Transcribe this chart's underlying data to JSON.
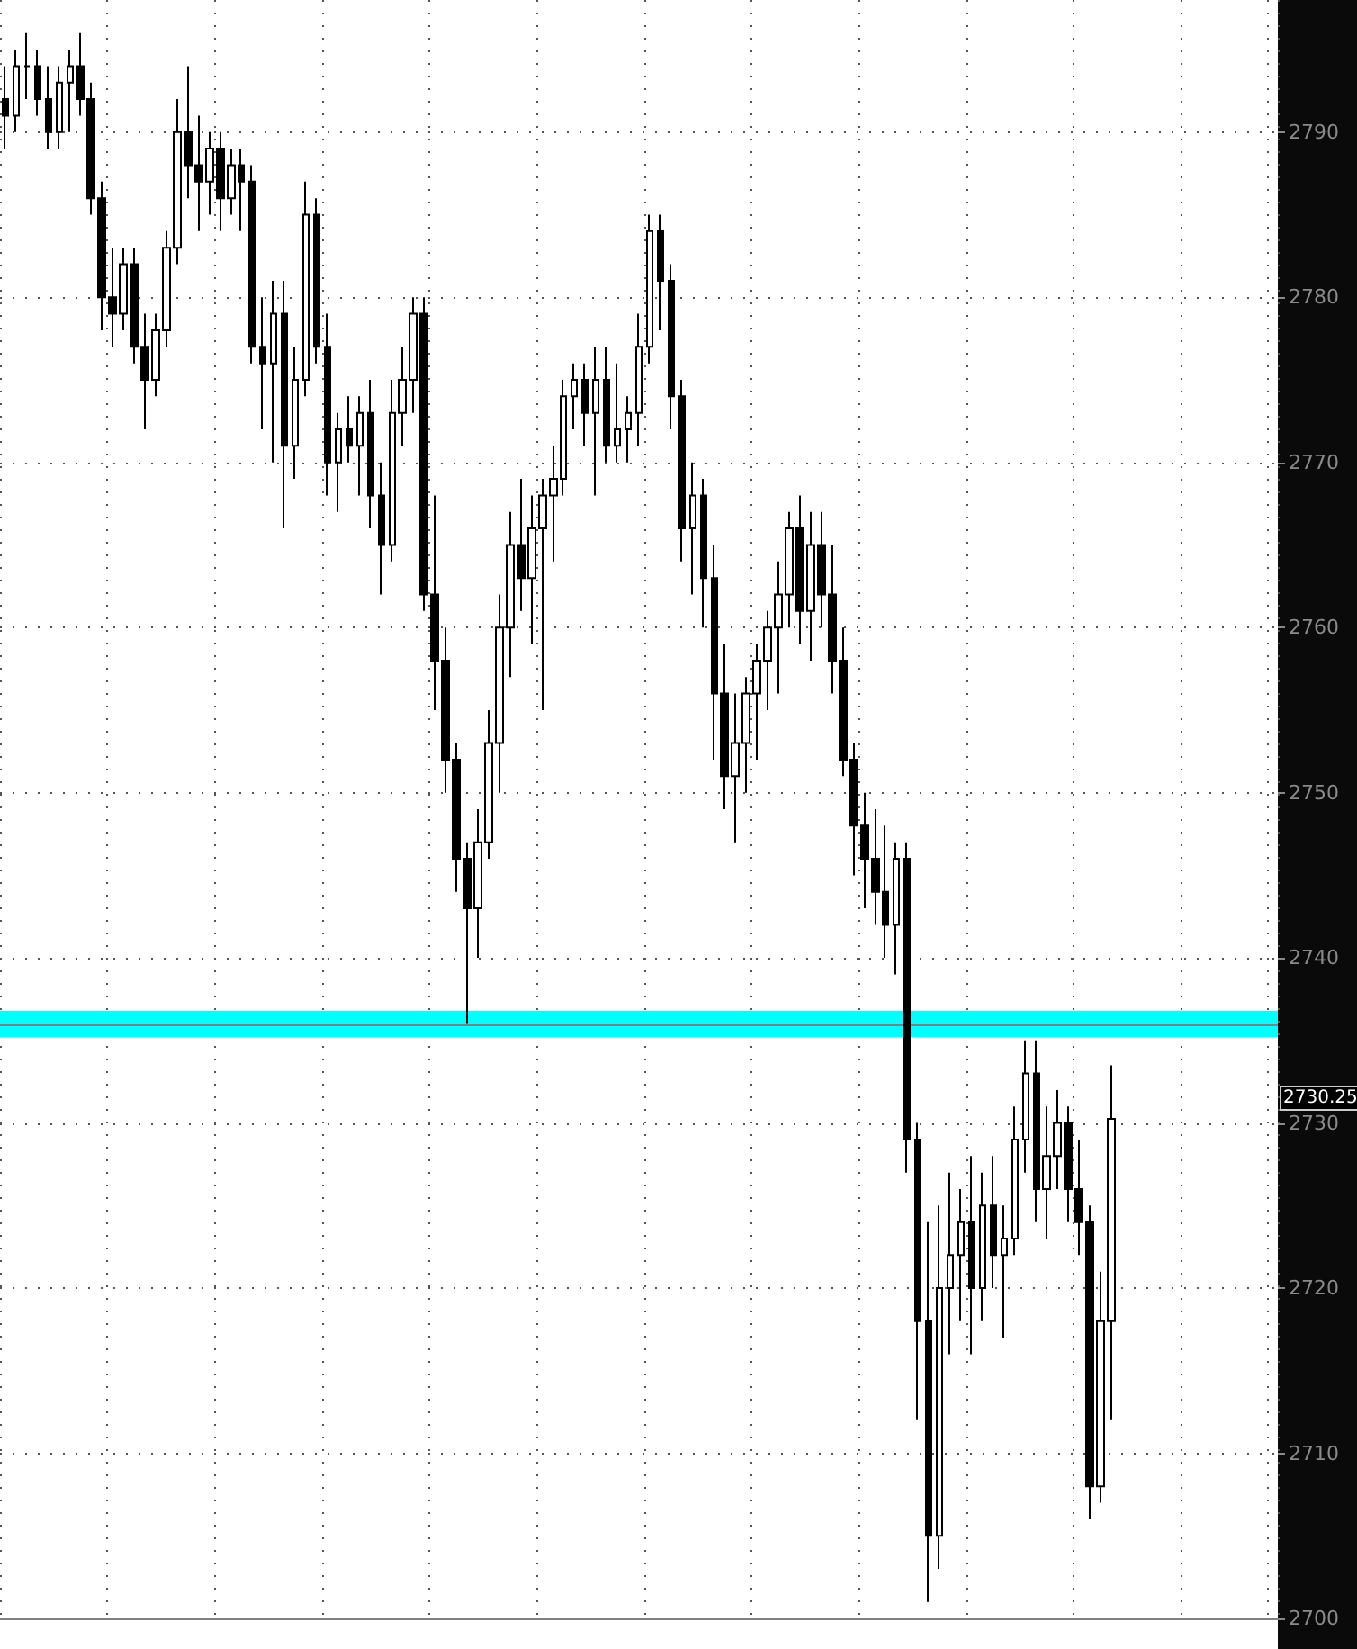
{
  "chart_data": {
    "type": "candlestick",
    "categories": [
      null,
      null,
      null,
      null,
      null,
      null,
      null,
      null,
      null,
      null,
      null,
      null,
      null,
      null,
      null,
      null,
      null,
      null,
      null,
      null,
      null,
      null,
      null,
      null,
      null,
      null,
      null,
      null,
      null,
      null,
      null,
      null,
      null,
      null,
      null,
      null,
      null,
      null,
      null,
      null,
      null,
      null,
      null,
      null,
      null,
      null,
      null,
      null,
      null,
      null,
      null,
      null,
      null,
      null,
      null,
      null,
      null,
      null,
      null,
      null,
      null,
      null,
      null,
      null,
      null,
      null,
      null,
      null,
      null,
      null,
      null,
      null,
      null,
      null,
      null,
      null,
      null,
      null,
      null,
      null,
      null,
      null,
      null,
      null,
      null,
      null,
      null,
      null,
      null,
      null,
      null,
      null,
      null,
      null,
      null,
      null,
      null,
      null,
      null,
      null,
      null,
      null,
      null,
      null,
      null,
      null,
      null,
      null,
      null,
      null,
      null,
      null,
      null,
      null,
      null,
      null,
      null,
      null,
      null
    ],
    "ohlc": [
      [
        2792,
        2794,
        2789,
        2791
      ],
      [
        2791,
        2795,
        2790,
        2794
      ],
      [
        2794,
        2796,
        2792,
        2794
      ],
      [
        2794,
        2795,
        2791,
        2792
      ],
      [
        2792,
        2794,
        2789,
        2790
      ],
      [
        2790,
        2794,
        2789,
        2793
      ],
      [
        2793,
        2795,
        2790,
        2794
      ],
      [
        2794,
        2796,
        2791,
        2792
      ],
      [
        2792,
        2793,
        2785,
        2786
      ],
      [
        2786,
        2787,
        2778,
        2780
      ],
      [
        2780,
        2783,
        2777,
        2779
      ],
      [
        2779,
        2783,
        2778,
        2782
      ],
      [
        2782,
        2783,
        2776,
        2777
      ],
      [
        2777,
        2779,
        2772,
        2775
      ],
      [
        2775,
        2779,
        2774,
        2778
      ],
      [
        2778,
        2784,
        2777,
        2783
      ],
      [
        2783,
        2792,
        2782,
        2790
      ],
      [
        2790,
        2794,
        2786,
        2788
      ],
      [
        2788,
        2791,
        2784,
        2787
      ],
      [
        2787,
        2790,
        2785,
        2789
      ],
      [
        2789,
        2790,
        2784,
        2786
      ],
      [
        2786,
        2789,
        2785,
        2788
      ],
      [
        2788,
        2789,
        2784,
        2787
      ],
      [
        2787,
        2788,
        2776,
        2777
      ],
      [
        2777,
        2780,
        2772,
        2776
      ],
      [
        2776,
        2781,
        2770,
        2779
      ],
      [
        2779,
        2781,
        2766,
        2771
      ],
      [
        2771,
        2777,
        2769,
        2775
      ],
      [
        2775,
        2787,
        2774,
        2785
      ],
      [
        2785,
        2786,
        2776,
        2777
      ],
      [
        2777,
        2779,
        2768,
        2770
      ],
      [
        2770,
        2773,
        2767,
        2772
      ],
      [
        2772,
        2774,
        2770,
        2771
      ],
      [
        2771,
        2774,
        2768,
        2773
      ],
      [
        2773,
        2775,
        2766,
        2768
      ],
      [
        2768,
        2770,
        2762,
        2765
      ],
      [
        2765,
        2775,
        2764,
        2773
      ],
      [
        2773,
        2777,
        2771,
        2775
      ],
      [
        2775,
        2780,
        2773,
        2779
      ],
      [
        2779,
        2780,
        2761,
        2762
      ],
      [
        2762,
        2768,
        2755,
        2758
      ],
      [
        2758,
        2760,
        2750,
        2752
      ],
      [
        2752,
        2753,
        2744,
        2746
      ],
      [
        2746,
        2747,
        2736,
        2743
      ],
      [
        2743,
        2749,
        2740,
        2747
      ],
      [
        2747,
        2755,
        2746,
        2753
      ],
      [
        2753,
        2762,
        2750,
        2760
      ],
      [
        2760,
        2767,
        2757,
        2765
      ],
      [
        2765,
        2769,
        2761,
        2763
      ],
      [
        2763,
        2768,
        2759,
        2766
      ],
      [
        2766,
        2769,
        2755,
        2768
      ],
      [
        2768,
        2771,
        2764,
        2769
      ],
      [
        2769,
        2775,
        2768,
        2774
      ],
      [
        2774,
        2776,
        2772,
        2775
      ],
      [
        2775,
        2776,
        2771,
        2773
      ],
      [
        2773,
        2777,
        2768,
        2775
      ],
      [
        2775,
        2777,
        2770,
        2771
      ],
      [
        2771,
        2776,
        2770,
        2772
      ],
      [
        2772,
        2774,
        2770,
        2773
      ],
      [
        2773,
        2779,
        2771,
        2777
      ],
      [
        2777,
        2785,
        2776,
        2784
      ],
      [
        2784,
        2785,
        2778,
        2781
      ],
      [
        2781,
        2782,
        2772,
        2774
      ],
      [
        2774,
        2775,
        2764,
        2766
      ],
      [
        2766,
        2770,
        2762,
        2768
      ],
      [
        2768,
        2769,
        2760,
        2763
      ],
      [
        2763,
        2765,
        2752,
        2756
      ],
      [
        2756,
        2759,
        2749,
        2751
      ],
      [
        2751,
        2756,
        2747,
        2753
      ],
      [
        2753,
        2757,
        2750,
        2756
      ],
      [
        2756,
        2759,
        2752,
        2758
      ],
      [
        2758,
        2761,
        2755,
        2760
      ],
      [
        2760,
        2764,
        2756,
        2762
      ],
      [
        2762,
        2767,
        2760,
        2766
      ],
      [
        2766,
        2768,
        2759,
        2761
      ],
      [
        2761,
        2767,
        2758,
        2765
      ],
      [
        2765,
        2767,
        2760,
        2762
      ],
      [
        2762,
        2765,
        2756,
        2758
      ],
      [
        2758,
        2760,
        2751,
        2752
      ],
      [
        2752,
        2753,
        2745,
        2748
      ],
      [
        2748,
        2750,
        2743,
        2746
      ],
      [
        2746,
        2749,
        2742,
        2744
      ],
      [
        2744,
        2748,
        2740,
        2742
      ],
      [
        2742,
        2747,
        2739,
        2746
      ],
      [
        2746,
        2747,
        2727,
        2729
      ],
      [
        2729,
        2730,
        2712,
        2718
      ],
      [
        2718,
        2724,
        2701,
        2705
      ],
      [
        2705,
        2725,
        2703,
        2720
      ],
      [
        2720,
        2727,
        2716,
        2722
      ],
      [
        2722,
        2726,
        2718,
        2724
      ],
      [
        2724,
        2728,
        2716,
        2720
      ],
      [
        2720,
        2727,
        2718,
        2725
      ],
      [
        2725,
        2728,
        2720,
        2722
      ],
      [
        2722,
        2725,
        2717,
        2723
      ],
      [
        2723,
        2731,
        2722,
        2729
      ],
      [
        2729,
        2735,
        2727,
        2733
      ],
      [
        2733,
        2735,
        2724,
        2726
      ],
      [
        2726,
        2731,
        2723,
        2728
      ],
      [
        2728,
        2732,
        2726,
        2730
      ],
      [
        2730,
        2731,
        2724,
        2726
      ],
      [
        2726,
        2729,
        2722,
        2724
      ],
      [
        2724,
        2725,
        2706,
        2708
      ],
      [
        2708,
        2721,
        2707,
        2718
      ],
      [
        2718,
        2733.5,
        2712,
        2730.25
      ],
      null,
      null,
      null,
      null,
      null,
      null,
      null,
      null,
      null,
      null,
      null,
      null,
      null,
      null,
      null
    ],
    "color": "#000000",
    "ylim": [
      2700,
      2798
    ],
    "yticks": [
      2700,
      2710,
      2720,
      2730,
      2740,
      2750,
      2760,
      2770,
      2780,
      2790
    ],
    "grid": true,
    "ref_lines": [
      {
        "axis": "y",
        "value": 2736,
        "color": "#808080"
      }
    ],
    "bands": [
      {
        "axis": "y",
        "from": 2735.2,
        "to": 2736.8,
        "color": "#00ffff"
      }
    ],
    "annotations": [
      "2730.25"
    ]
  }
}
